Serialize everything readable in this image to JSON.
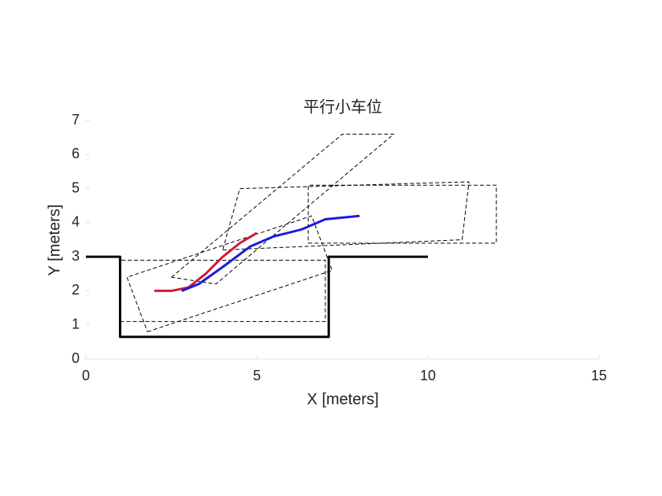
{
  "chart_data": {
    "type": "line",
    "title": "平行小车位",
    "xlabel": "X [meters]",
    "ylabel": "Y [meters]",
    "xlim": [
      0,
      15
    ],
    "xticks": [
      0,
      5,
      10,
      15
    ],
    "ylim": [
      0,
      7
    ],
    "yticks": [
      0,
      1,
      2,
      3,
      4,
      5,
      6,
      7
    ],
    "grid": false,
    "series": [
      {
        "color": "#000000",
        "style": "dashed",
        "width": 1,
        "x": [
          1,
          7,
          7,
          1,
          1
        ],
        "values": [
          1.1,
          1.1,
          2.9,
          2.9,
          1.1
        ]
      },
      {
        "color": "#000000",
        "style": "dashed",
        "width": 1,
        "x": [
          1.8,
          7.2,
          6.6,
          1.2,
          1.8
        ],
        "values": [
          0.8,
          2.6,
          4.2,
          2.4,
          0.8
        ]
      },
      {
        "color": "#000000",
        "style": "dashed",
        "width": 1,
        "x": [
          2.5,
          7.5,
          9,
          3.8,
          2.5
        ],
        "values": [
          2.4,
          6.6,
          6.6,
          2.2,
          2.4
        ]
      },
      {
        "color": "#000000",
        "style": "dashed",
        "width": 1,
        "x": [
          4,
          11,
          11.2,
          4.5,
          4
        ],
        "values": [
          3.2,
          3.5,
          5.2,
          5,
          3.2
        ]
      },
      {
        "color": "#000000",
        "style": "dashed",
        "width": 1,
        "x": [
          6.5,
          12,
          12,
          6.5,
          6.5
        ],
        "values": [
          3.4,
          3.4,
          5.1,
          5.1,
          3.4
        ]
      },
      {
        "color": "#000000",
        "style": "solid",
        "width": 3,
        "x": [
          0,
          1,
          1,
          7.1,
          7.1,
          10
        ],
        "values": [
          3,
          3,
          0.65,
          0.65,
          3,
          3
        ]
      },
      {
        "color": "#cc1a3a",
        "style": "solid",
        "width": 3,
        "x": [
          2,
          2.5,
          3,
          3.5,
          4,
          4.5,
          5
        ],
        "values": [
          2,
          2,
          2.1,
          2.5,
          3,
          3.4,
          3.7
        ]
      },
      {
        "color": "#1a1adc",
        "style": "solid",
        "width": 3,
        "x": [
          2.8,
          3.3,
          4,
          4.8,
          5.5,
          6.3,
          7,
          8
        ],
        "values": [
          2,
          2.2,
          2.7,
          3.3,
          3.6,
          3.8,
          4.1,
          4.2
        ]
      }
    ]
  }
}
